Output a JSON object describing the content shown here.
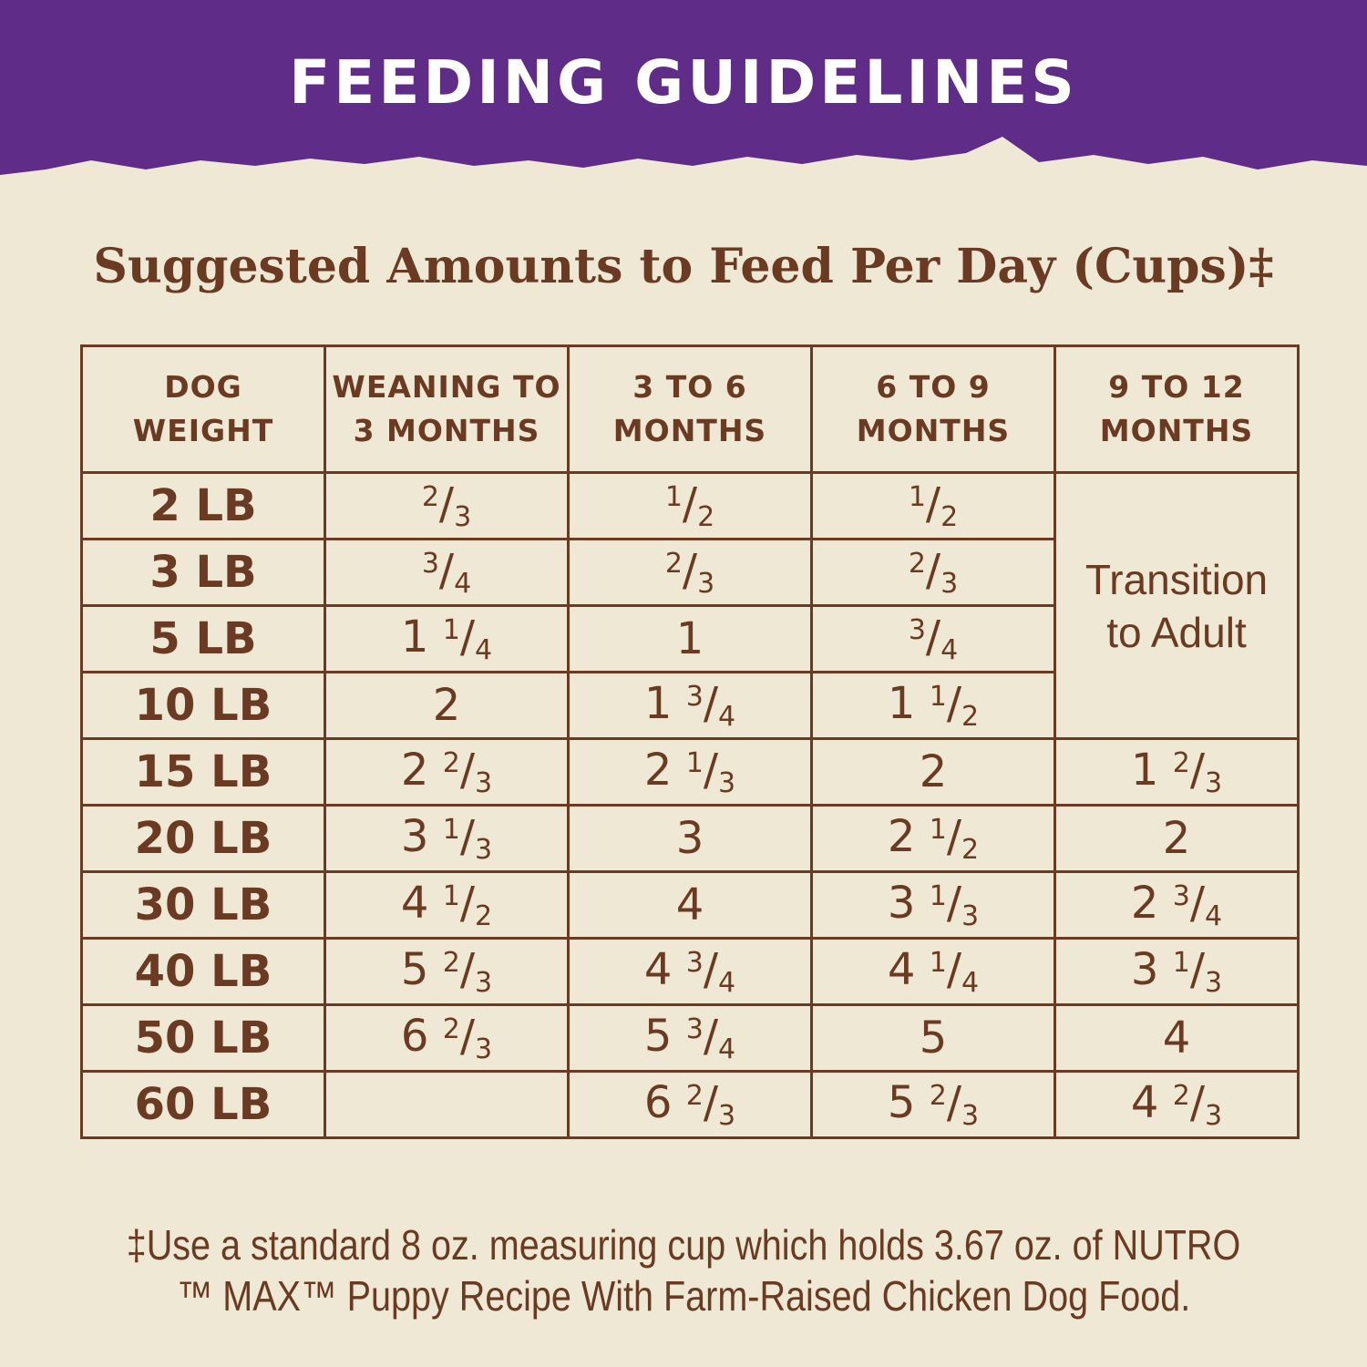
{
  "header": {
    "title": "FEEDING GUIDELINES"
  },
  "subtitle": "Suggested Amounts to Feed Per Day (Cups)‡",
  "table": {
    "headers": [
      [
        "DOG",
        "WEIGHT"
      ],
      [
        "WEANING TO",
        "3 MONTHS"
      ],
      [
        "3 TO 6",
        "MONTHS"
      ],
      [
        "6 TO 9",
        "MONTHS"
      ],
      [
        "9 TO 12",
        "MONTHS"
      ]
    ],
    "rows": [
      [
        "2 LB",
        "2/3",
        "1/2",
        "1/2"
      ],
      [
        "3 LB",
        "3/4",
        "2/3",
        "2/3"
      ],
      [
        "5 LB",
        "1 1/4",
        "1",
        "3/4"
      ],
      [
        "10 LB",
        "2",
        "1 3/4",
        "1 1/2"
      ],
      [
        "15 LB",
        "2 2/3",
        "2 1/3",
        "2",
        "1 2/3"
      ],
      [
        "20 LB",
        "3 1/3",
        "3",
        "2 1/2",
        "2"
      ],
      [
        "30 LB",
        "4 1/2",
        "4",
        "3 1/3",
        "2 3/4"
      ],
      [
        "40 LB",
        "5 2/3",
        "4 3/4",
        "4 1/4",
        "3 1/3"
      ],
      [
        "50 LB",
        "6 2/3",
        "5 3/4",
        "5",
        "4"
      ],
      [
        "60 LB",
        null,
        "6 2/3",
        "5 2/3",
        "4 2/3"
      ]
    ],
    "transition_note": [
      "Transition",
      "to Adult"
    ]
  },
  "footnote": [
    "‡Use a standard 8 oz. measuring cup which holds 3.67 oz. of NUTRO",
    "™ MAX™ Puppy Recipe With Farm-Raised Chicken Dog Food."
  ]
}
